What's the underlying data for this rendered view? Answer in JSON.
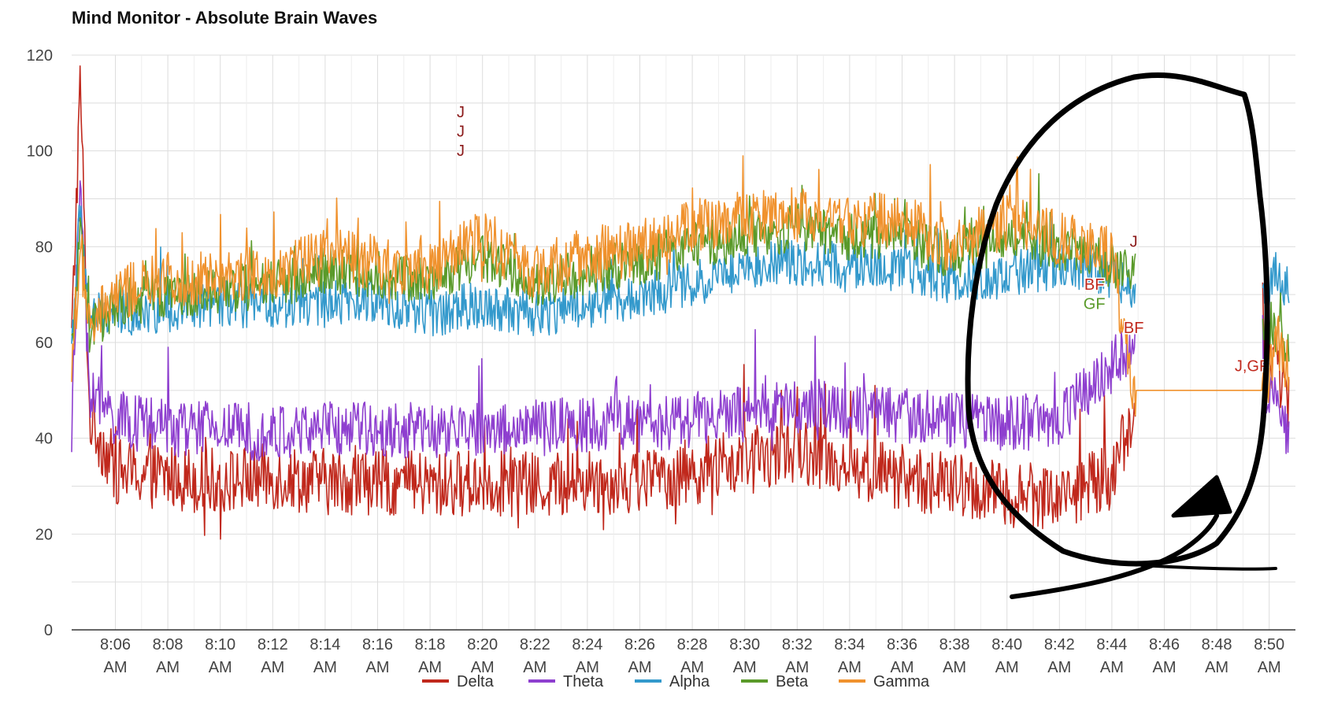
{
  "chart_data": {
    "type": "line",
    "title": "Mind Monitor - Absolute Brain Waves",
    "xlabel": "",
    "ylabel": "",
    "ylim": [
      0,
      120
    ],
    "yticks": [
      0,
      20,
      40,
      60,
      80,
      100,
      120
    ],
    "x_ticks": [
      {
        "time": "8:06",
        "ampm": "AM"
      },
      {
        "time": "8:08",
        "ampm": "AM"
      },
      {
        "time": "8:10",
        "ampm": "AM"
      },
      {
        "time": "8:12",
        "ampm": "AM"
      },
      {
        "time": "8:14",
        "ampm": "AM"
      },
      {
        "time": "8:16",
        "ampm": "AM"
      },
      {
        "time": "8:18",
        "ampm": "AM"
      },
      {
        "time": "8:20",
        "ampm": "AM"
      },
      {
        "time": "8:22",
        "ampm": "AM"
      },
      {
        "time": "8:24",
        "ampm": "AM"
      },
      {
        "time": "8:26",
        "ampm": "AM"
      },
      {
        "time": "8:28",
        "ampm": "AM"
      },
      {
        "time": "8:30",
        "ampm": "AM"
      },
      {
        "time": "8:32",
        "ampm": "AM"
      },
      {
        "time": "8:34",
        "ampm": "AM"
      },
      {
        "time": "8:36",
        "ampm": "AM"
      },
      {
        "time": "8:38",
        "ampm": "AM"
      },
      {
        "time": "8:40",
        "ampm": "AM"
      },
      {
        "time": "8:42",
        "ampm": "AM"
      },
      {
        "time": "8:44",
        "ampm": "AM"
      },
      {
        "time": "8:46",
        "ampm": "AM"
      },
      {
        "time": "8:48",
        "ampm": "AM"
      },
      {
        "time": "8:50",
        "ampm": "AM"
      }
    ],
    "xlim": [
      "8:04:20",
      "8:51:00"
    ],
    "grid": true,
    "legend": "bottom",
    "series": [
      {
        "name": "Delta",
        "color": "#c0281c",
        "x": [
          "8:04:20",
          "8:04:40",
          "8:05:00",
          "8:06:00",
          "8:08:00",
          "8:10:00",
          "8:12:00",
          "8:14:00",
          "8:16:00",
          "8:18:00",
          "8:20:00",
          "8:22:00",
          "8:24:00",
          "8:26:00",
          "8:28:00",
          "8:30:00",
          "8:32:00",
          "8:34:00",
          "8:36:00",
          "8:38:00",
          "8:40:00",
          "8:42:00",
          "8:44:00",
          "8:44:50",
          "8:49:50",
          "8:50:20",
          "8:50:45"
        ],
        "y": [
          60,
          115,
          45,
          33,
          32,
          31,
          32,
          31,
          31,
          30,
          31,
          30,
          31,
          31,
          33,
          35,
          38,
          34,
          32,
          30,
          28,
          28,
          32,
          45,
          58,
          55,
          48
        ]
      },
      {
        "name": "Theta",
        "color": "#8e3fcf",
        "x": [
          "8:04:20",
          "8:04:40",
          "8:05:00",
          "8:06:00",
          "8:08:00",
          "8:10:00",
          "8:12:00",
          "8:14:00",
          "8:16:00",
          "8:18:00",
          "8:20:00",
          "8:22:00",
          "8:24:00",
          "8:26:00",
          "8:28:00",
          "8:30:00",
          "8:32:00",
          "8:34:00",
          "8:36:00",
          "8:38:00",
          "8:40:00",
          "8:42:00",
          "8:44:00",
          "8:44:50",
          "8:49:50",
          "8:50:20",
          "8:50:45"
        ],
        "y": [
          42,
          95,
          50,
          44,
          42,
          42,
          41,
          42,
          42,
          41,
          42,
          42,
          43,
          43,
          44,
          45,
          47,
          46,
          45,
          44,
          43,
          44,
          55,
          60,
          52,
          45,
          42
        ]
      },
      {
        "name": "Alpha",
        "color": "#3399cc",
        "x": [
          "8:04:20",
          "8:04:40",
          "8:05:00",
          "8:06:00",
          "8:08:00",
          "8:10:00",
          "8:12:00",
          "8:14:00",
          "8:16:00",
          "8:18:00",
          "8:20:00",
          "8:22:00",
          "8:24:00",
          "8:26:00",
          "8:28:00",
          "8:30:00",
          "8:32:00",
          "8:34:00",
          "8:36:00",
          "8:38:00",
          "8:40:00",
          "8:42:00",
          "8:44:00",
          "8:44:50",
          "8:49:50",
          "8:50:20",
          "8:50:45"
        ],
        "y": [
          60,
          88,
          65,
          66,
          67,
          68,
          68,
          68,
          69,
          66,
          68,
          66,
          68,
          70,
          72,
          76,
          77,
          76,
          75,
          73,
          74,
          76,
          74,
          72,
          70,
          75,
          70
        ]
      },
      {
        "name": "Beta",
        "color": "#5a9a2a",
        "x": [
          "8:04:20",
          "8:04:40",
          "8:05:00",
          "8:06:00",
          "8:08:00",
          "8:10:00",
          "8:12:00",
          "8:14:00",
          "8:16:00",
          "8:18:00",
          "8:20:00",
          "8:22:00",
          "8:24:00",
          "8:26:00",
          "8:28:00",
          "8:30:00",
          "8:32:00",
          "8:34:00",
          "8:36:00",
          "8:38:00",
          "8:40:00",
          "8:42:00",
          "8:44:00",
          "8:44:50",
          "8:49:50",
          "8:50:20",
          "8:50:45"
        ],
        "y": [
          58,
          82,
          62,
          68,
          70,
          71,
          72,
          75,
          74,
          73,
          78,
          72,
          75,
          77,
          80,
          82,
          84,
          82,
          82,
          78,
          82,
          80,
          76,
          74,
          65,
          62,
          58
        ]
      },
      {
        "name": "Gamma",
        "color": "#f0922e",
        "x": [
          "8:04:20",
          "8:04:40",
          "8:05:00",
          "8:06:00",
          "8:08:00",
          "8:10:00",
          "8:12:00",
          "8:14:00",
          "8:16:00",
          "8:18:00",
          "8:20:00",
          "8:22:00",
          "8:24:00",
          "8:26:00",
          "8:28:00",
          "8:30:00",
          "8:32:00",
          "8:34:00",
          "8:36:00",
          "8:38:00",
          "8:40:00",
          "8:42:00",
          "8:44:00",
          "8:44:50",
          "8:49:50",
          "8:50:20",
          "8:50:45"
        ],
        "y": [
          55,
          80,
          62,
          70,
          73,
          74,
          75,
          78,
          77,
          75,
          82,
          75,
          78,
          80,
          84,
          86,
          87,
          85,
          86,
          80,
          85,
          82,
          78,
          50,
          50,
          60,
          55
        ]
      }
    ],
    "annotations": [
      {
        "text": "J",
        "x": "8:19:10",
        "y": 103,
        "color": "#8b1a1a"
      },
      {
        "text": "J",
        "x": "8:19:10",
        "y": 99,
        "color": "#8b1a1a"
      },
      {
        "text": "J",
        "x": "8:19:10",
        "y": 107,
        "color": "#8b1a1a"
      },
      {
        "text": "J",
        "x": "8:44:50",
        "y": 80,
        "color": "#8b1a1a"
      },
      {
        "text": "BF",
        "x": "8:43:20",
        "y": 71,
        "color": "#c0281c"
      },
      {
        "text": "GF",
        "x": "8:43:20",
        "y": 67,
        "color": "#5a9a2a"
      },
      {
        "text": "BF",
        "x": "8:44:50",
        "y": 62,
        "color": "#c0281c"
      },
      {
        "text": "J,GF",
        "x": "8:49:20",
        "y": 54,
        "color": "#c0281c"
      }
    ]
  },
  "colors": {
    "grid": "#dddddd",
    "axis": "#333333",
    "marker": "#000000"
  }
}
